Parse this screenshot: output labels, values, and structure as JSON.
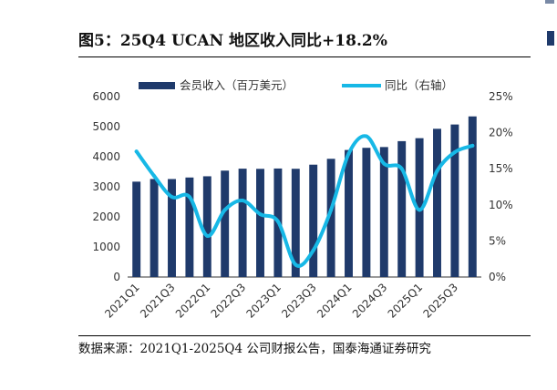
{
  "title": "图5：25Q4 UCAN 地区收入同比+18.2%",
  "source": "数据来源：2021Q1-2025Q4 公司财报公告，国泰海通证券研究",
  "chart_data": {
    "type": "bar",
    "categories": [
      "2021Q1",
      "2021Q2",
      "2021Q3",
      "2021Q4",
      "2022Q1",
      "2022Q2",
      "2022Q3",
      "2022Q4",
      "2023Q1",
      "2023Q2",
      "2023Q3",
      "2023Q4",
      "2024Q1",
      "2024Q2",
      "2024Q3",
      "2024Q4",
      "2025Q1",
      "2025Q2",
      "2025Q3",
      "2025Q4"
    ],
    "x_tick_labels": [
      "2021Q1",
      "2021Q3",
      "2022Q1",
      "2022Q3",
      "2023Q1",
      "2023Q3",
      "2024Q1",
      "2024Q3",
      "2025Q1",
      "2025Q3"
    ],
    "series": [
      {
        "name": "会员收入（百万美元）",
        "type": "bar",
        "axis": "left",
        "color": "#1f3a6b",
        "values": [
          3171,
          3259,
          3258,
          3309,
          3350,
          3538,
          3603,
          3597,
          3608,
          3599,
          3736,
          3931,
          4224,
          4296,
          4322,
          4518,
          4617,
          4929,
          5072,
          5341
        ]
      },
      {
        "name": "同比（右轴）",
        "type": "line",
        "axis": "right",
        "color": "#17b8e6",
        "values": [
          17.4,
          14.0,
          11.1,
          11.1,
          5.7,
          9.3,
          10.6,
          8.7,
          7.7,
          1.7,
          3.7,
          9.3,
          17.1,
          19.5,
          15.7,
          15.0,
          9.3,
          14.7,
          17.3,
          18.2
        ]
      }
    ],
    "y_left": {
      "range": [
        0,
        6000
      ],
      "ticks": [
        "0",
        "1000",
        "2000",
        "3000",
        "4000",
        "5000",
        "6000"
      ]
    },
    "y_right": {
      "range": [
        0,
        25
      ],
      "ticks": [
        "0%",
        "5%",
        "10%",
        "15%",
        "20%",
        "25%"
      ]
    },
    "legend_position": "top",
    "grid": false
  }
}
